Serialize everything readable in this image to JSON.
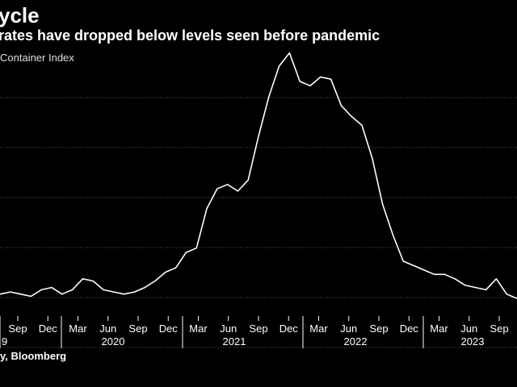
{
  "title": "ycle",
  "subtitle": "rates have dropped below levels seen before pandemic",
  "series_label": "Container Index",
  "source": "y, Bloomberg",
  "colors": {
    "background": "#000000",
    "line": "#ffffff",
    "grid": "#555555",
    "text": "#ffffff"
  },
  "chart_data": {
    "type": "line",
    "title": "ycle",
    "subtitle": "rates have dropped below levels seen before pandemic",
    "xlabel": "",
    "ylabel": "",
    "grid": true,
    "y_gridlines": 6,
    "month_ticks": [
      "Sep",
      "Dec",
      "Mar",
      "Jun",
      "Sep",
      "Dec",
      "Mar",
      "Jun",
      "Sep",
      "Dec",
      "Mar",
      "Jun",
      "Sep",
      "Dec",
      "Mar",
      "Jun",
      "Sep"
    ],
    "year_labels": [
      "9",
      "2020",
      "2021",
      "2022",
      "2023"
    ],
    "series": [
      {
        "values": [
          0.1,
          0.11,
          0.1,
          0.09,
          0.12,
          0.13,
          0.1,
          0.12,
          0.17,
          0.16,
          0.12,
          0.11,
          0.1,
          0.11,
          0.13,
          0.16,
          0.2,
          0.22,
          0.29,
          0.31,
          0.49,
          0.58,
          0.6,
          0.57,
          0.62,
          0.82,
          1.0,
          1.14,
          1.2,
          1.07,
          1.05,
          1.09,
          1.08,
          0.96,
          0.91,
          0.87,
          0.72,
          0.51,
          0.37,
          0.25,
          0.23,
          0.21,
          0.19,
          0.19,
          0.17,
          0.14,
          0.13,
          0.12,
          0.17,
          0.1,
          0.08
        ]
      }
    ]
  }
}
